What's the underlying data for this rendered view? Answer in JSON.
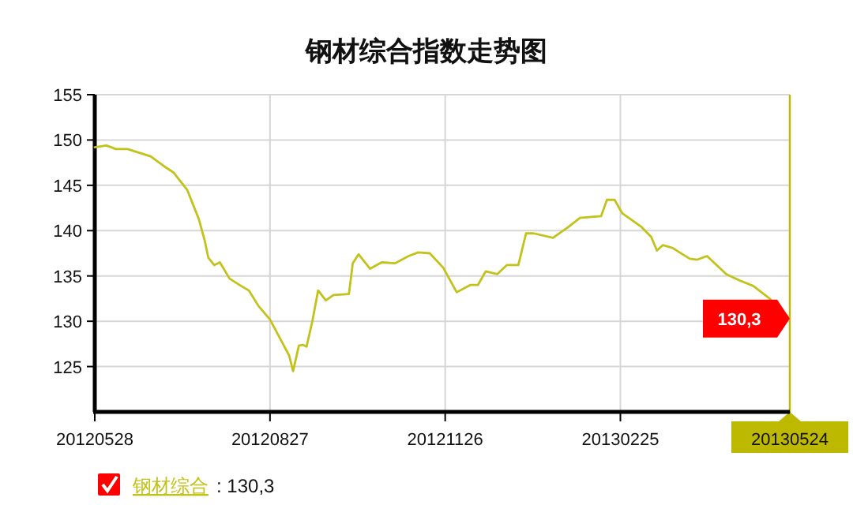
{
  "chart_data": {
    "type": "line",
    "title": "钢材综合指数走势图",
    "x": [
      "2012-05-28",
      "2012-06-03",
      "2012-06-08",
      "2012-06-14",
      "2012-06-26",
      "2012-07-03",
      "2012-07-08",
      "2012-07-15",
      "2012-07-21",
      "2012-07-24",
      "2012-07-26",
      "2012-07-29",
      "2012-08-01",
      "2012-08-06",
      "2012-08-12",
      "2012-08-16",
      "2012-08-21",
      "2012-08-27",
      "2012-09-01",
      "2012-09-06",
      "2012-09-08",
      "2012-09-11",
      "2012-09-13",
      "2012-09-15",
      "2012-09-18",
      "2012-09-21",
      "2012-09-25",
      "2012-09-29",
      "2012-10-07",
      "2012-10-09",
      "2012-10-12",
      "2012-10-18",
      "2012-10-24",
      "2012-10-31",
      "2012-11-07",
      "2012-11-12",
      "2012-11-18",
      "2012-11-25",
      "2012-12-02",
      "2012-12-09",
      "2012-12-13",
      "2012-12-17",
      "2012-12-23",
      "2012-12-28",
      "2013-01-03",
      "2013-01-07",
      "2013-01-11",
      "2013-01-21",
      "2013-01-29",
      "2013-02-04",
      "2013-02-15",
      "2013-02-18",
      "2013-02-22",
      "2013-02-26",
      "2013-03-08",
      "2013-03-13",
      "2013-03-16",
      "2013-03-19",
      "2013-03-24",
      "2013-04-02",
      "2013-04-06",
      "2013-04-11",
      "2013-04-21",
      "2013-04-28",
      "2013-05-05",
      "2013-05-13",
      "2013-05-24"
    ],
    "series": [
      {
        "name": "钢材综合",
        "color": "#c2c21a",
        "values": [
          149.2,
          149.4,
          149.0,
          149.0,
          148.2,
          147.1,
          146.4,
          144.5,
          141.3,
          139.0,
          137.0,
          136.2,
          136.5,
          134.7,
          133.9,
          133.4,
          131.7,
          130.2,
          128.2,
          126.2,
          124.5,
          127.3,
          127.4,
          127.2,
          130.0,
          133.4,
          132.3,
          132.9,
          133.0,
          136.4,
          137.4,
          135.8,
          136.5,
          136.4,
          137.2,
          137.6,
          137.5,
          135.9,
          133.2,
          134.0,
          134.0,
          135.5,
          135.2,
          136.2,
          136.2,
          139.7,
          139.7,
          139.2,
          140.4,
          141.4,
          141.6,
          143.4,
          143.4,
          141.9,
          140.4,
          139.3,
          137.8,
          138.4,
          138.1,
          136.9,
          136.8,
          137.2,
          135.2,
          134.5,
          133.9,
          132.6,
          130.3
        ]
      }
    ],
    "xlim": [
      "2012-05-28",
      "2013-05-24"
    ],
    "xticks": [
      {
        "value": "2012-05-28",
        "label": "20120528"
      },
      {
        "value": "2012-08-27",
        "label": "20120827"
      },
      {
        "value": "2012-11-26",
        "label": "20121126"
      },
      {
        "value": "2013-02-25",
        "label": "20130225"
      },
      {
        "value": "2013-05-24",
        "label": "20130524"
      }
    ],
    "ylim": [
      120,
      155
    ],
    "yticks": [
      125,
      130,
      135,
      140,
      145,
      150,
      155
    ],
    "grid": true,
    "legend": "bottom left",
    "ref_lines": [
      {
        "axis": "x",
        "value": "2013-05-24",
        "color": "#bdb800"
      }
    ],
    "annotations": [
      {
        "text": "130,3",
        "x": "2013-05-24",
        "y": 130.3
      },
      ": 130,3"
    ]
  }
}
